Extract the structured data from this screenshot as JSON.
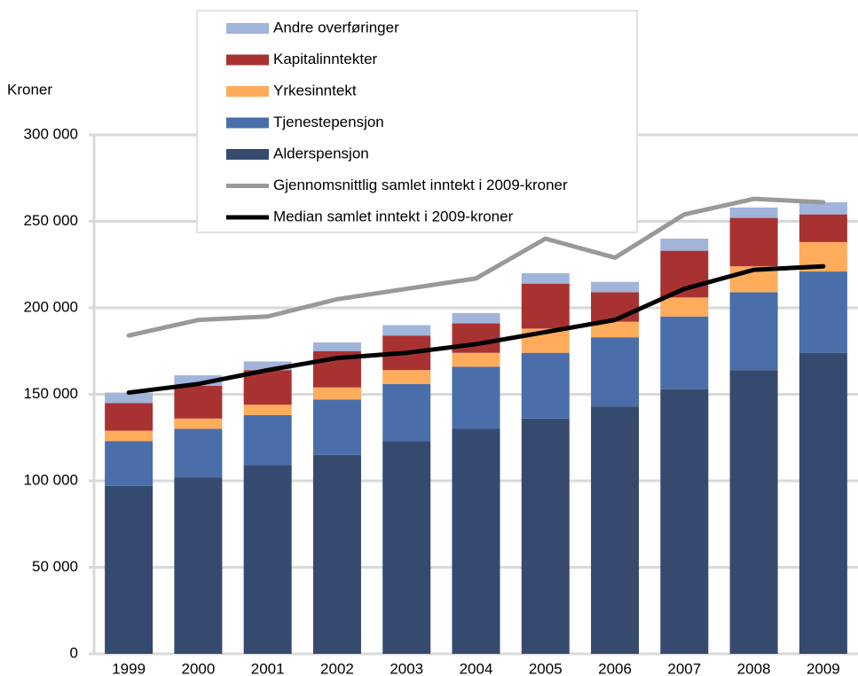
{
  "chart_data": {
    "type": "bar",
    "stacked": true,
    "y_axis_label": "Kroner",
    "categories": [
      "1999",
      "2000",
      "2001",
      "2002",
      "2003",
      "2004",
      "2005",
      "2006",
      "2007",
      "2008",
      "2009"
    ],
    "series": [
      {
        "name": "Alderspensjon",
        "color": "#354a6e",
        "values": [
          97000,
          102000,
          109000,
          115000,
          123000,
          130000,
          136000,
          143000,
          153000,
          164000,
          174000
        ]
      },
      {
        "name": "Tjenestepensjon",
        "color": "#4a6ea9",
        "values": [
          26000,
          28000,
          29000,
          32000,
          33000,
          36000,
          38000,
          40000,
          42000,
          45000,
          47000
        ]
      },
      {
        "name": "Yrkesinntekt",
        "color": "#ffac5c",
        "values": [
          6000,
          6000,
          6000,
          7000,
          8000,
          8000,
          14000,
          9000,
          11000,
          15000,
          17000
        ]
      },
      {
        "name": "Kapitalinntekter",
        "color": "#a83232",
        "values": [
          16000,
          19000,
          20000,
          21000,
          20000,
          17000,
          26000,
          17000,
          27000,
          28000,
          16000
        ]
      },
      {
        "name": "Andre overføringer",
        "color": "#a1b4da",
        "values": [
          6000,
          6000,
          5000,
          5000,
          6000,
          6000,
          6000,
          6000,
          7000,
          6000,
          7000
        ]
      },
      {
        "name": "Gjennomsnittlig samlet inntekt i 2009-kroner",
        "type": "line",
        "color": "#999999",
        "values": [
          184000,
          193000,
          195000,
          205000,
          211000,
          217000,
          240000,
          229000,
          254000,
          263000,
          261000
        ]
      },
      {
        "name": "Median samlet inntekt i 2009-kroner",
        "type": "line",
        "color": "#000000",
        "values": [
          151000,
          156000,
          164000,
          171000,
          174000,
          179000,
          186000,
          193000,
          211000,
          222000,
          224000
        ]
      }
    ],
    "ylim": [
      0,
      300000
    ],
    "yticks": [
      0,
      {
        "value": 50000,
        "label": "50 000"
      },
      {
        "value": 100000,
        "label": "100 000"
      },
      {
        "value": 150000,
        "label": "150 000"
      },
      {
        "value": 200000,
        "label": "200 000"
      },
      {
        "value": 250000,
        "label": "250 000"
      },
      {
        "value": 300000,
        "label": "300 000"
      }
    ],
    "grid": true,
    "legend": "top"
  }
}
